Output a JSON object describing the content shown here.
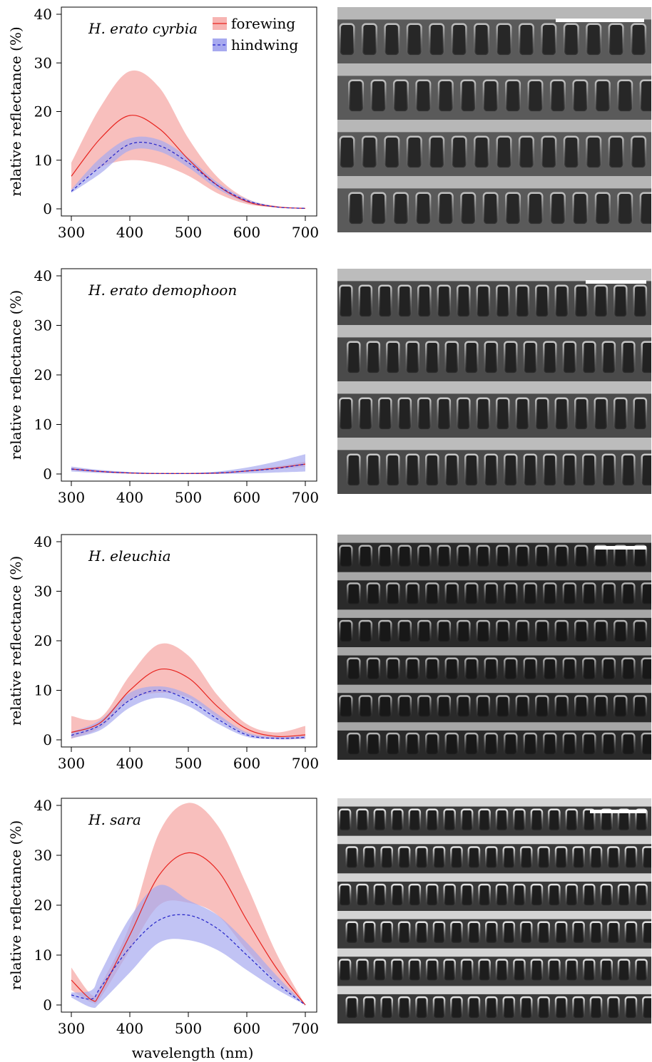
{
  "figure": {
    "xlabel": "wavelength (nm)",
    "legend": {
      "forewing": "forewing",
      "hindwing": "hindwing"
    }
  },
  "colors": {
    "forewing_line": "#e8241f",
    "forewing_band": "#f7b4b2",
    "hindwing_line": "#2323c8",
    "hindwing_band": "#a7a9ef",
    "overlap": "#c9a3d7"
  },
  "chart_data": [
    {
      "type": "line",
      "title": "H. erato cyrbia",
      "xlabel": "",
      "ylabel": "relative reflectance (%)",
      "xlim": [
        300,
        700
      ],
      "ylim": [
        0,
        40
      ],
      "xticks": [
        300,
        400,
        500,
        600,
        700
      ],
      "yticks": [
        0,
        10,
        20,
        30,
        40
      ],
      "legend": "top-right",
      "x": [
        300,
        350,
        400,
        450,
        500,
        550,
        600,
        650,
        700
      ],
      "series": [
        {
          "name": "forewing",
          "values": [
            6.7,
            14.5,
            19.2,
            16.5,
            10.2,
            4.8,
            1.5,
            0.4,
            0.1
          ],
          "lower": [
            3.8,
            8.5,
            10.0,
            9.2,
            6.8,
            3.2,
            1.0,
            0.3,
            0.0
          ],
          "upper": [
            9.5,
            21.0,
            28.3,
            25.0,
            14.5,
            6.5,
            2.1,
            0.6,
            0.1
          ]
        },
        {
          "name": "hindwing",
          "values": [
            3.6,
            8.7,
            13.3,
            13.0,
            9.5,
            4.8,
            1.7,
            0.4,
            0.1
          ],
          "lower": [
            3.3,
            7.3,
            12.0,
            11.8,
            8.5,
            4.1,
            1.3,
            0.3,
            0.0
          ],
          "upper": [
            4.0,
            10.5,
            14.5,
            14.2,
            10.5,
            5.4,
            2.0,
            0.5,
            0.1
          ]
        }
      ]
    },
    {
      "type": "line",
      "title": "H. erato demophoon",
      "xlabel": "",
      "ylabel": "relative reflectance (%)",
      "xlim": [
        300,
        700
      ],
      "ylim": [
        0,
        40
      ],
      "xticks": [
        300,
        400,
        500,
        600,
        700
      ],
      "yticks": [
        0,
        10,
        20,
        30,
        40
      ],
      "x": [
        300,
        350,
        400,
        450,
        500,
        550,
        600,
        650,
        700
      ],
      "series": [
        {
          "name": "forewing",
          "values": [
            1.0,
            0.5,
            0.2,
            0.1,
            0.1,
            0.2,
            0.6,
            1.2,
            2.0
          ],
          "lower": [
            0.7,
            0.4,
            0.1,
            0.0,
            0.0,
            0.1,
            0.4,
            0.9,
            1.5
          ],
          "upper": [
            1.3,
            0.7,
            0.3,
            0.1,
            0.1,
            0.3,
            0.8,
            1.5,
            2.5
          ]
        },
        {
          "name": "hindwing",
          "values": [
            1.0,
            0.5,
            0.2,
            0.1,
            0.1,
            0.2,
            0.6,
            1.1,
            2.0
          ],
          "lower": [
            0.5,
            0.2,
            0.1,
            0.0,
            0.0,
            0.0,
            0.1,
            0.3,
            0.5
          ],
          "upper": [
            1.5,
            0.8,
            0.4,
            0.2,
            0.2,
            0.5,
            1.3,
            2.5,
            4.0
          ]
        }
      ]
    },
    {
      "type": "line",
      "title": "H. eleuchia",
      "xlabel": "",
      "ylabel": "relative reflectance (%)",
      "xlim": [
        300,
        700
      ],
      "ylim": [
        0,
        40
      ],
      "xticks": [
        300,
        400,
        500,
        600,
        700
      ],
      "yticks": [
        0,
        10,
        20,
        30,
        40
      ],
      "x": [
        300,
        350,
        400,
        450,
        500,
        550,
        600,
        650,
        700
      ],
      "series": [
        {
          "name": "forewing",
          "values": [
            1.5,
            3.5,
            10.0,
            14.2,
            12.5,
            6.7,
            2.2,
            0.7,
            1.0
          ],
          "lower": [
            0.2,
            2.5,
            8.0,
            9.5,
            8.5,
            4.5,
            1.2,
            0.2,
            0.2
          ],
          "upper": [
            4.8,
            4.5,
            13.0,
            19.3,
            17.0,
            9.0,
            3.2,
            1.5,
            2.8
          ]
        },
        {
          "name": "hindwing",
          "values": [
            0.9,
            3.0,
            8.0,
            10.0,
            8.0,
            4.2,
            1.0,
            0.3,
            0.5
          ],
          "lower": [
            0.3,
            2.0,
            6.5,
            8.5,
            6.8,
            3.3,
            0.6,
            0.1,
            0.2
          ],
          "upper": [
            1.6,
            4.0,
            9.5,
            10.8,
            9.2,
            5.2,
            1.5,
            0.6,
            0.8
          ]
        }
      ]
    },
    {
      "type": "line",
      "title": "H. sara",
      "xlabel": "wavelength (nm)",
      "ylabel": "relative reflectance (%)",
      "xlim": [
        300,
        700
      ],
      "ylim": [
        0,
        40
      ],
      "xticks": [
        300,
        400,
        500,
        600,
        700
      ],
      "yticks": [
        0,
        10,
        20,
        30,
        40
      ],
      "x": [
        300,
        335,
        350,
        400,
        450,
        500,
        550,
        600,
        650,
        700
      ],
      "series": [
        {
          "name": "forewing",
          "values": [
            5.0,
            1.0,
            2.5,
            14.0,
            26.0,
            30.5,
            27.0,
            17.0,
            7.5,
            0.0
          ],
          "lower": [
            3.0,
            0.5,
            1.5,
            11.0,
            20.0,
            20.5,
            18.0,
            11.0,
            4.8,
            0.0
          ],
          "upper": [
            7.5,
            2.0,
            4.0,
            16.0,
            34.5,
            40.5,
            36.0,
            24.0,
            10.5,
            0.0
          ]
        },
        {
          "name": "hindwing",
          "values": [
            2.0,
            1.2,
            3.5,
            11.5,
            17.0,
            18.0,
            15.3,
            10.0,
            4.5,
            0.0
          ],
          "lower": [
            1.5,
            -0.5,
            0.5,
            6.5,
            12.5,
            13.0,
            11.0,
            7.0,
            3.2,
            0.0
          ],
          "upper": [
            2.5,
            3.0,
            6.5,
            17.5,
            24.0,
            21.0,
            18.0,
            12.5,
            6.0,
            0.0
          ]
        }
      ]
    }
  ]
}
